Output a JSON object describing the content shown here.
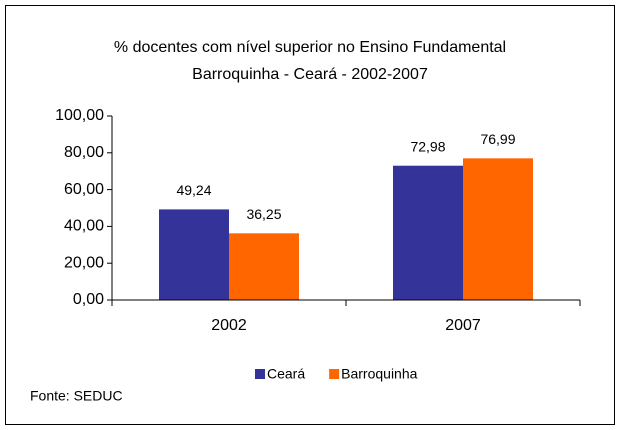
{
  "chart_data": {
    "type": "bar",
    "title": "% docentes com nível superior no Ensino Fundamental",
    "subtitle": "Barroquinha - Ceará - 2002-2007",
    "categories": [
      "2002",
      "2007"
    ],
    "series": [
      {
        "name": "Ceará",
        "color": "#333399",
        "values": [
          49.24,
          72.98
        ],
        "value_labels": [
          "49,24",
          "72,98"
        ]
      },
      {
        "name": "Barroquinha",
        "color": "#ff6600",
        "values": [
          36.25,
          76.99
        ],
        "value_labels": [
          "36,25",
          "76,99"
        ]
      }
    ],
    "ylim": [
      0,
      100
    ],
    "yticks": [
      {
        "value": 0,
        "label": "0,00"
      },
      {
        "value": 20,
        "label": "20,00"
      },
      {
        "value": 40,
        "label": "40,00"
      },
      {
        "value": 60,
        "label": "60,00"
      },
      {
        "value": 80,
        "label": "80,00"
      },
      {
        "value": 100,
        "label": "100,00"
      }
    ],
    "legend": "bottom",
    "source": "Fonte: SEDUC"
  }
}
